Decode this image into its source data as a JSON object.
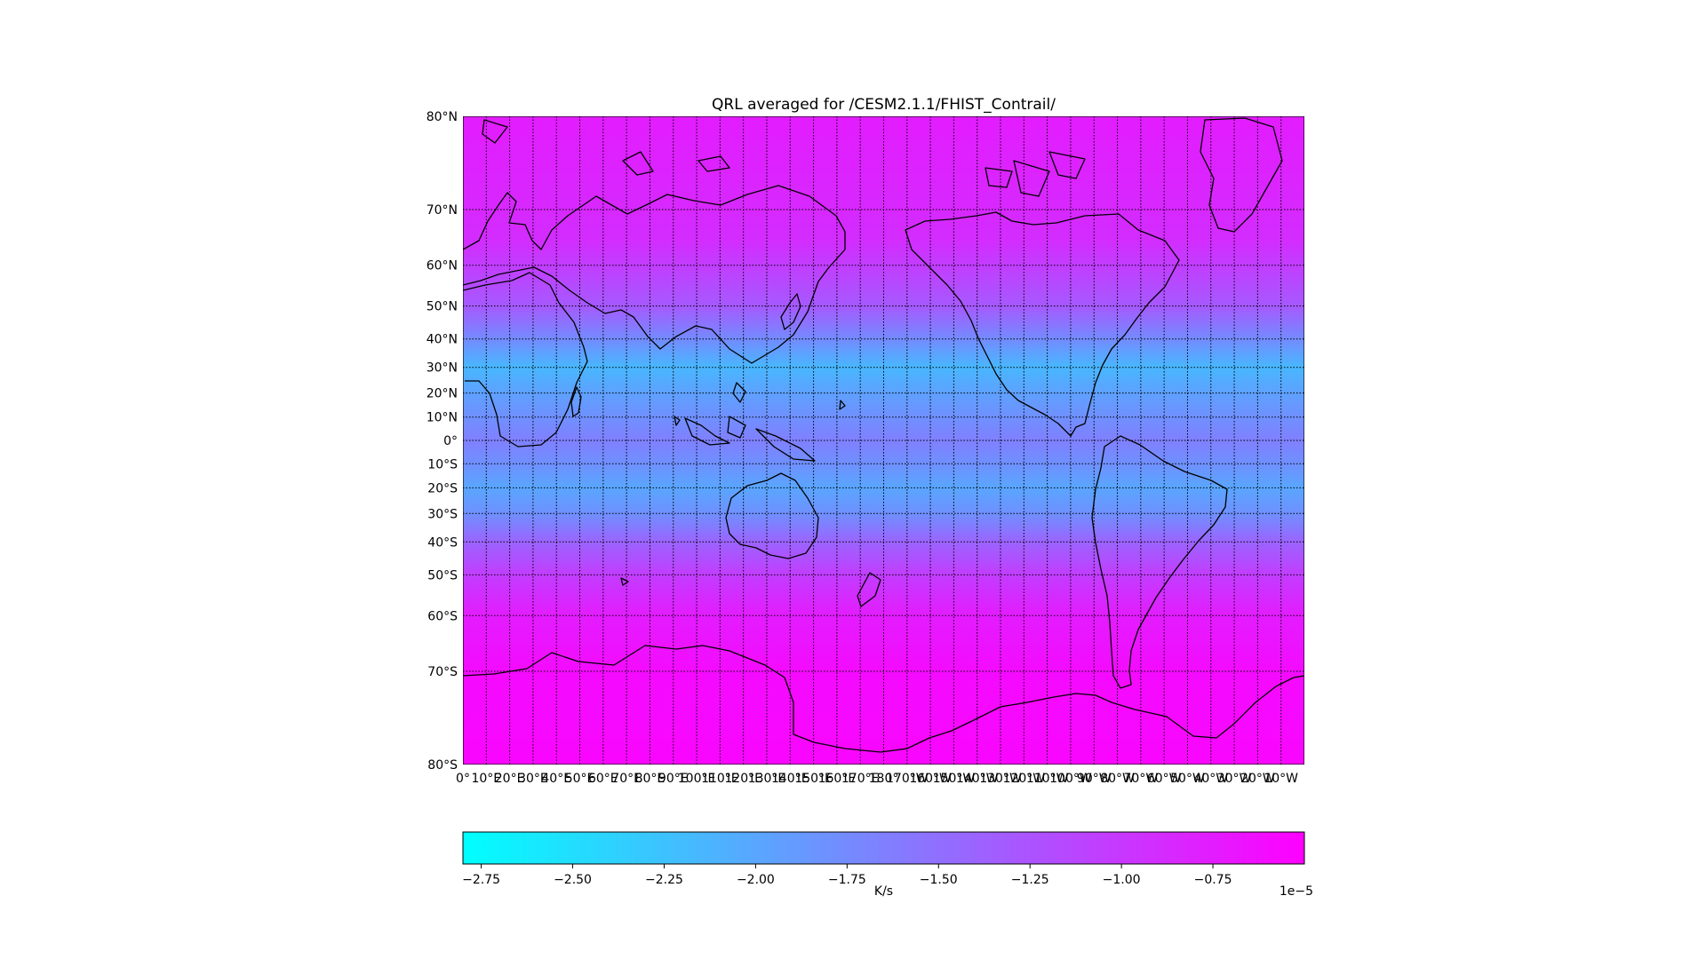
{
  "chart_data": {
    "type": "heatmap",
    "title": "QRL averaged for /CESM2.1.1/FHIST_Contrail/",
    "projection": "mercator",
    "lon_range": [
      0,
      360
    ],
    "lat_range": [
      -80,
      80
    ],
    "grid": true,
    "lat_ticks": [
      {
        "value": 80,
        "label": "80°N"
      },
      {
        "value": 70,
        "label": "70°N"
      },
      {
        "value": 60,
        "label": "60°N"
      },
      {
        "value": 50,
        "label": "50°N"
      },
      {
        "value": 40,
        "label": "40°N"
      },
      {
        "value": 30,
        "label": "30°N"
      },
      {
        "value": 20,
        "label": "20°N"
      },
      {
        "value": 10,
        "label": "10°N"
      },
      {
        "value": 0,
        "label": "0°"
      },
      {
        "value": -10,
        "label": "10°S"
      },
      {
        "value": -20,
        "label": "20°S"
      },
      {
        "value": -30,
        "label": "30°S"
      },
      {
        "value": -40,
        "label": "40°S"
      },
      {
        "value": -50,
        "label": "50°S"
      },
      {
        "value": -60,
        "label": "60°S"
      },
      {
        "value": -70,
        "label": "70°S"
      },
      {
        "value": -80,
        "label": "80°S"
      }
    ],
    "lon_ticks": [
      {
        "value": 0,
        "label": "0°"
      },
      {
        "value": 10,
        "label": "10°E"
      },
      {
        "value": 20,
        "label": "20°E"
      },
      {
        "value": 30,
        "label": "30°E"
      },
      {
        "value": 40,
        "label": "40°E"
      },
      {
        "value": 50,
        "label": "50°E"
      },
      {
        "value": 60,
        "label": "60°E"
      },
      {
        "value": 70,
        "label": "70°E"
      },
      {
        "value": 80,
        "label": "80°E"
      },
      {
        "value": 90,
        "label": "90°E"
      },
      {
        "value": 100,
        "label": "100°E"
      },
      {
        "value": 110,
        "label": "110°E"
      },
      {
        "value": 120,
        "label": "120°E"
      },
      {
        "value": 130,
        "label": "130°E"
      },
      {
        "value": 140,
        "label": "140°E"
      },
      {
        "value": 150,
        "label": "150°E"
      },
      {
        "value": 160,
        "label": "160°E"
      },
      {
        "value": 170,
        "label": "170°E"
      },
      {
        "value": 180,
        "label": "180°"
      },
      {
        "value": 190,
        "label": "170°W"
      },
      {
        "value": 200,
        "label": "160°W"
      },
      {
        "value": 210,
        "label": "150°W"
      },
      {
        "value": 220,
        "label": "140°W"
      },
      {
        "value": 230,
        "label": "130°W"
      },
      {
        "value": 240,
        "label": "120°W"
      },
      {
        "value": 250,
        "label": "110°W"
      },
      {
        "value": 260,
        "label": "100°W"
      },
      {
        "value": 270,
        "label": "90°W"
      },
      {
        "value": 280,
        "label": "80°W"
      },
      {
        "value": 290,
        "label": "70°W"
      },
      {
        "value": 300,
        "label": "60°W"
      },
      {
        "value": 310,
        "label": "50°W"
      },
      {
        "value": 320,
        "label": "40°W"
      },
      {
        "value": 330,
        "label": "30°W"
      },
      {
        "value": 340,
        "label": "20°W"
      },
      {
        "value": 350,
        "label": "10°W"
      }
    ],
    "colormap": {
      "name": "cool",
      "low": "#00ffff",
      "high": "#ff00ff"
    },
    "value_range": [
      -2.8,
      -0.5
    ],
    "colorbar": {
      "ticks": [
        -2.75,
        -2.5,
        -2.25,
        -2.0,
        -1.75,
        -1.5,
        -1.25,
        -1.0,
        -0.75
      ],
      "tick_labels": [
        "−2.75",
        "−2.50",
        "−2.25",
        "−2.00",
        "−1.75",
        "−1.50",
        "−1.25",
        "−1.00",
        "−0.75"
      ],
      "label": "K/s",
      "exponent": "1e−5"
    },
    "field_profile": [
      {
        "lat": 80,
        "value": -0.75
      },
      {
        "lat": 65,
        "value": -0.9
      },
      {
        "lat": 50,
        "value": -1.3
      },
      {
        "lat": 40,
        "value": -1.75
      },
      {
        "lat": 30,
        "value": -2.15
      },
      {
        "lat": 20,
        "value": -1.95
      },
      {
        "lat": 10,
        "value": -1.8
      },
      {
        "lat": 0,
        "value": -1.65
      },
      {
        "lat": -10,
        "value": -1.8
      },
      {
        "lat": -20,
        "value": -2.0
      },
      {
        "lat": -30,
        "value": -1.8
      },
      {
        "lat": -40,
        "value": -1.4
      },
      {
        "lat": -50,
        "value": -1.05
      },
      {
        "lat": -60,
        "value": -0.75
      },
      {
        "lat": -70,
        "value": -0.6
      },
      {
        "lat": -80,
        "value": -0.55
      }
    ]
  }
}
